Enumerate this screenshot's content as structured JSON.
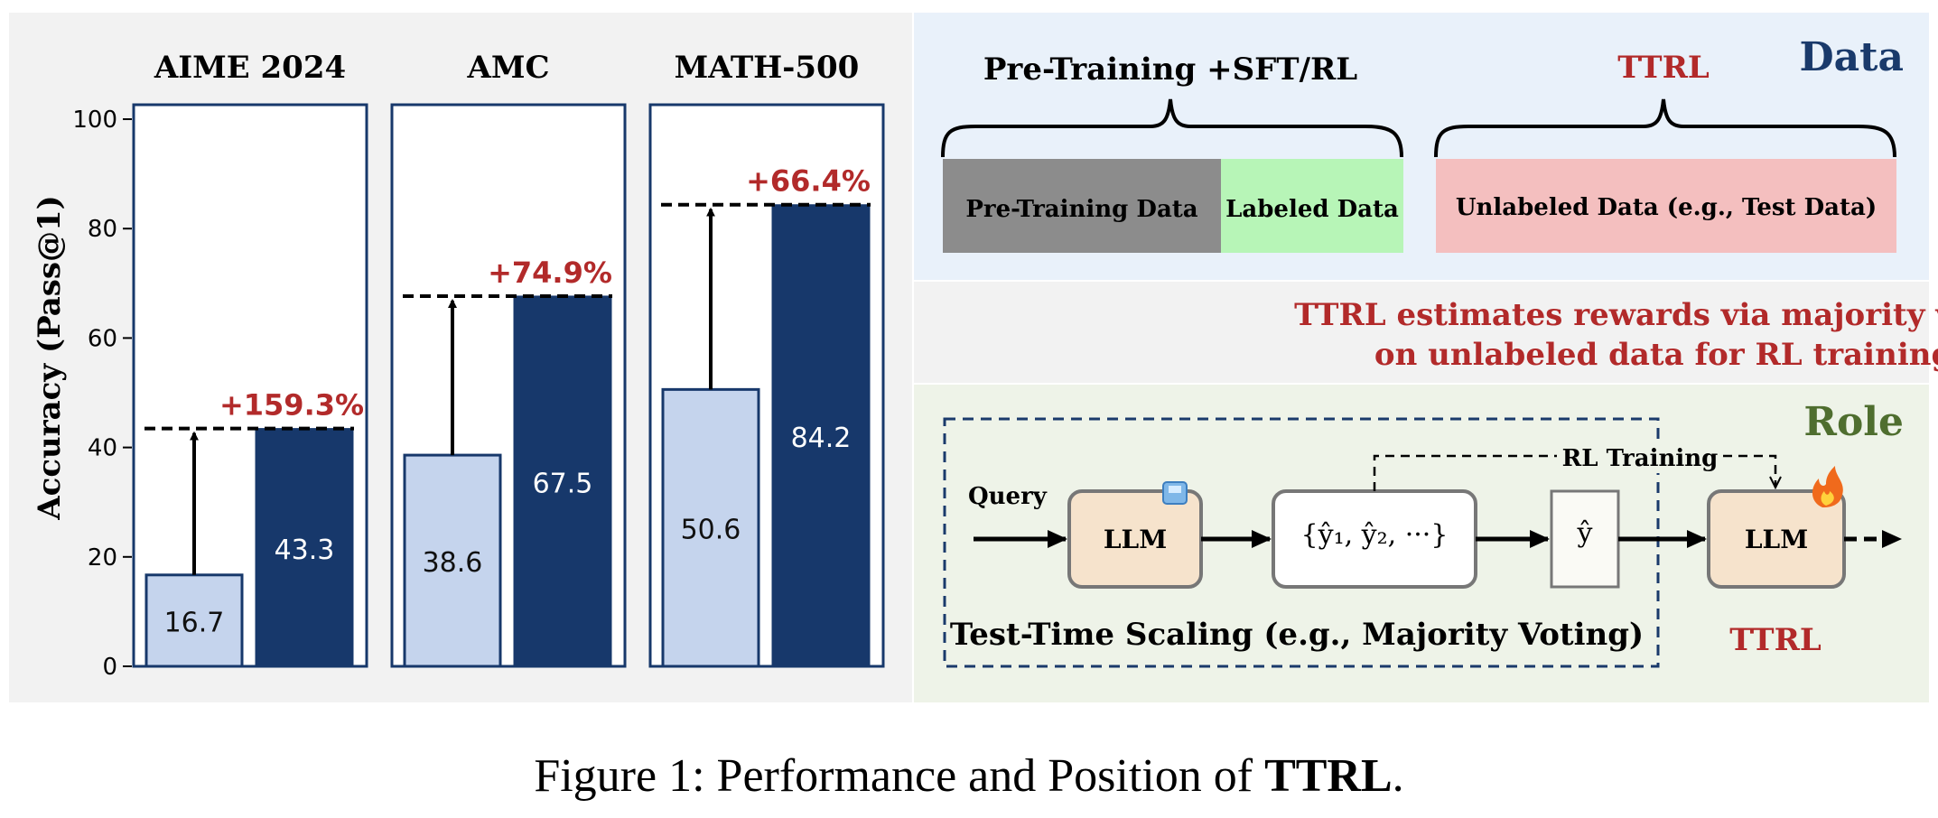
{
  "chart_data": {
    "type": "bar",
    "ylabel": "Accuracy (Pass@1)",
    "ylim": [
      0,
      100
    ],
    "yticks": [
      "0",
      "20",
      "40",
      "60",
      "80",
      "100"
    ],
    "panels": [
      {
        "title": "AIME 2024",
        "before": 16.7,
        "after": 43.3,
        "before_label": "16.7",
        "after_label": "43.3",
        "gain_label": "+159.3%"
      },
      {
        "title": "AMC",
        "before": 38.6,
        "after": 67.5,
        "before_label": "38.6",
        "after_label": "67.5",
        "gain_label": "+74.9%"
      },
      {
        "title": "MATH-500",
        "before": 50.6,
        "after": 84.2,
        "before_label": "50.6",
        "after_label": "84.2",
        "gain_label": "+66.4%"
      }
    ],
    "colors": {
      "before": "#c5d4ed",
      "after": "#17386b",
      "gain": "#b22a2a"
    }
  },
  "data_section": {
    "tag": "Data",
    "left_brace_label": "Pre-Training +SFT/RL",
    "right_brace_label": "TTRL",
    "pretraining_box": "Pre-Training Data",
    "labeled_box": "Labeled Data",
    "unlabeled_box": "Unlabeled Data (e.g., Test Data)",
    "colors": {
      "pretraining": "#8c8c8c",
      "labeled": "#b7f5b7",
      "unlabeled": "#f4bfbf",
      "tag": "#1a3a6b"
    }
  },
  "middle_text": {
    "line1": "TTRL estimates rewards via majority voting",
    "line2": "on unlabeled data for RL training.",
    "color": "#b22a2a"
  },
  "role_section": {
    "tag": "Role",
    "query_label": "Query",
    "llm_label": "LLM",
    "samples_label": "{ŷ₁, ŷ₂, ···}",
    "vote_label": "ŷ",
    "rl_training_label": "RL Training",
    "ttrl_llm_label": "LLM",
    "tts_label": "Test-Time Scaling (e.g., Majority Voting)",
    "ttrl_label": "TTRL",
    "colors": {
      "tag": "#4f6e2f",
      "llm_box": "#f6e3cc",
      "ttrl": "#b22a2a"
    }
  },
  "caption": {
    "prefix": "Figure 1: Performance and Position of ",
    "bold": "TTRL",
    "suffix": "."
  }
}
